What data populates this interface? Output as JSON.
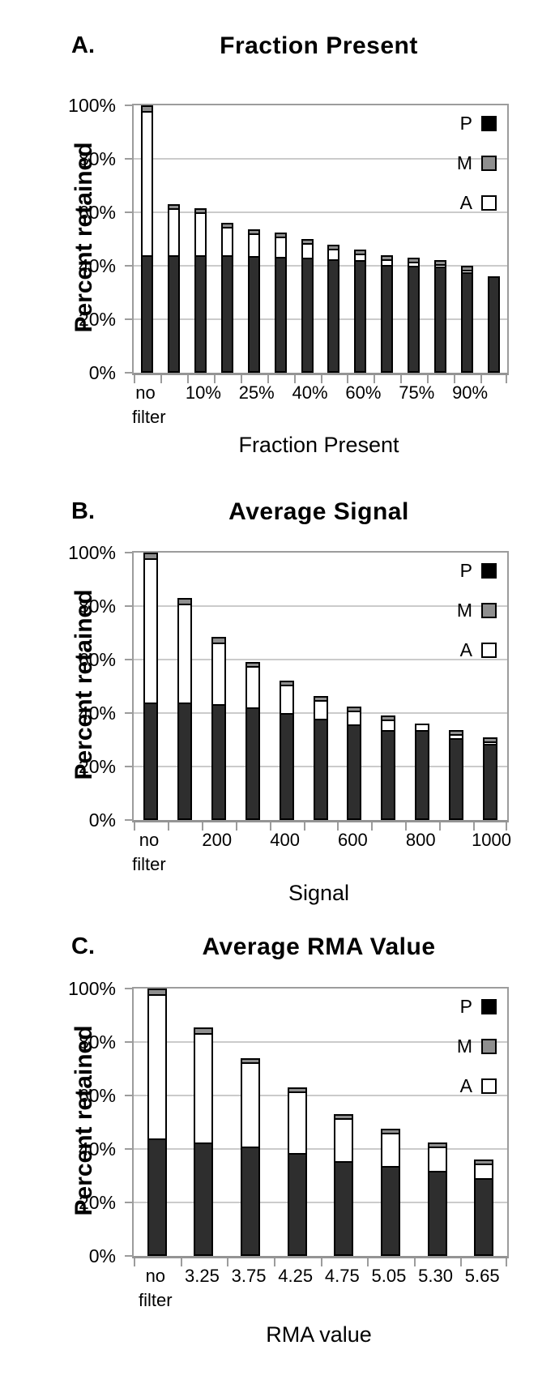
{
  "figure_title": "Filtering figure with three stacked bar charts",
  "colors": {
    "present_fill": "#2e2e2e",
    "marginal_fill": "#8f8f8f",
    "absent_fill": "#ffffff",
    "bar_border": "#000000",
    "gridline": "#cbcbcb",
    "plot_border": "#9c9c9c",
    "text": "#000000",
    "background": "#ffffff"
  },
  "chart_data": [
    {
      "type": "bar",
      "stacked": true,
      "panel_letter": "A.",
      "title": "Fraction Present",
      "xlabel": "Fraction Present",
      "ylabel": "Percent retained",
      "ylim": [
        0,
        100
      ],
      "y_ticks": [
        0,
        20,
        40,
        60,
        80,
        100
      ],
      "y_tick_labels": [
        "0%",
        "20%",
        "40%",
        "60%",
        "80%",
        "100%"
      ],
      "grid": true,
      "legend_position": "top-right",
      "categories": [
        "no\nfilter",
        "",
        "10%",
        "",
        "25%",
        "",
        "40%",
        "",
        "60%",
        "",
        "75%",
        "",
        "90%",
        ""
      ],
      "stack_order_bottom_to_top": [
        "P",
        "A",
        "M"
      ],
      "series": [
        {
          "name": "P",
          "values": [
            44.5,
            44.5,
            44.5,
            44.5,
            44,
            44,
            43.5,
            43.5,
            43,
            41.5,
            41,
            40.5,
            38.5,
            36
          ]
        },
        {
          "name": "M",
          "values": [
            1.5,
            1,
            1,
            1,
            1,
            1,
            1,
            0.5,
            0.5,
            0.5,
            0.5,
            0.5,
            0.5,
            0
          ]
        },
        {
          "name": "A",
          "values": [
            54,
            17.5,
            16,
            10.5,
            8.5,
            7.5,
            5.5,
            4,
            2.5,
            2,
            1.5,
            1,
            1,
            0
          ]
        }
      ],
      "legend": [
        {
          "label": "P",
          "color": "#000000"
        },
        {
          "label": "M",
          "color": "#8f8f8f"
        },
        {
          "label": "A",
          "color": "#ffffff"
        }
      ]
    },
    {
      "type": "bar",
      "stacked": true,
      "panel_letter": "B.",
      "title": "Average Signal",
      "xlabel": "Signal",
      "ylabel": "Percent retained",
      "ylim": [
        0,
        100
      ],
      "y_ticks": [
        0,
        20,
        40,
        60,
        80,
        100
      ],
      "y_tick_labels": [
        "0%",
        "20%",
        "40%",
        "60%",
        "80%",
        "100%"
      ],
      "grid": true,
      "legend_position": "top-right",
      "categories": [
        "no\nfilter",
        "",
        "200",
        "",
        "400",
        "",
        "600",
        "",
        "800",
        "",
        "1000"
      ],
      "stack_order_bottom_to_top": [
        "P",
        "A",
        "M"
      ],
      "series": [
        {
          "name": "P",
          "values": [
            44.5,
            44.5,
            44,
            42.5,
            41,
            39,
            37,
            34.5,
            33.5,
            31.5,
            29.5
          ]
        },
        {
          "name": "M",
          "values": [
            1.5,
            1.5,
            1.5,
            1,
            0.5,
            0.5,
            0.5,
            0.5,
            0,
            0.5,
            0.5
          ]
        },
        {
          "name": "A",
          "values": [
            54,
            37,
            23,
            15.5,
            10.5,
            7,
            5,
            4,
            2.5,
            1.5,
            1
          ]
        }
      ],
      "legend": [
        {
          "label": "P",
          "color": "#000000"
        },
        {
          "label": "M",
          "color": "#8f8f8f"
        },
        {
          "label": "A",
          "color": "#ffffff"
        }
      ]
    },
    {
      "type": "bar",
      "stacked": true,
      "panel_letter": "C.",
      "title": "Average RMA Value",
      "xlabel": "RMA value",
      "ylabel": "Percent retained",
      "ylim": [
        0,
        100
      ],
      "y_ticks": [
        0,
        20,
        40,
        60,
        80,
        100
      ],
      "y_tick_labels": [
        "0%",
        "20%",
        "40%",
        "60%",
        "80%",
        "100%"
      ],
      "grid": true,
      "legend_position": "top-right",
      "categories": [
        "no\nfilter",
        "3.25",
        "3.75",
        "4.25",
        "4.75",
        "5.05",
        "5.30",
        "5.65"
      ],
      "stack_order_bottom_to_top": [
        "P",
        "A",
        "M"
      ],
      "series": [
        {
          "name": "P",
          "values": [
            44.5,
            43,
            41.5,
            39,
            36.5,
            34.5,
            33,
            30
          ]
        },
        {
          "name": "M",
          "values": [
            1.5,
            1.5,
            1,
            1,
            0.5,
            0.5,
            0.5,
            0.5
          ]
        },
        {
          "name": "A",
          "values": [
            54,
            41,
            31.5,
            23,
            16,
            12.5,
            9,
            5.5
          ]
        }
      ],
      "legend": [
        {
          "label": "P",
          "color": "#000000"
        },
        {
          "label": "M",
          "color": "#8f8f8f"
        },
        {
          "label": "A",
          "color": "#ffffff"
        }
      ]
    }
  ]
}
